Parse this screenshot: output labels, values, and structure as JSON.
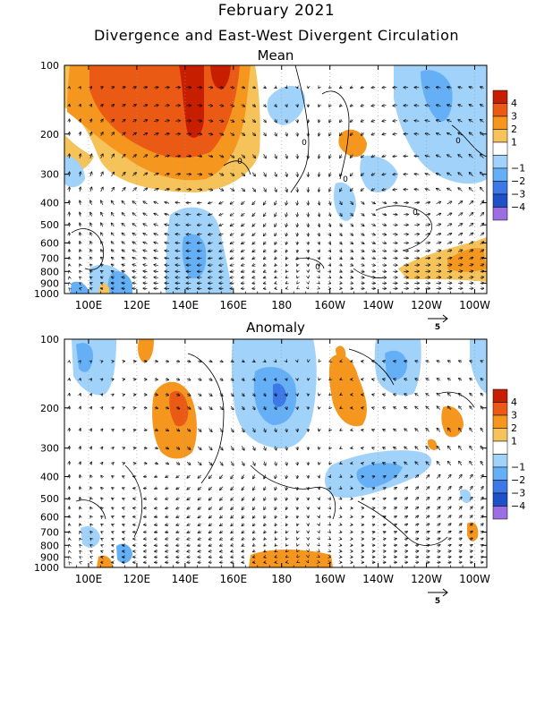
{
  "title": "February 2021",
  "subtitle": "Divergence and East-West Divergent Circulation",
  "colors": {
    "pos4": "#c81e00",
    "pos3": "#eb5a14",
    "pos2": "#f5961e",
    "pos1": "#f5c35a",
    "neg1": "#a0d2fa",
    "neg2": "#64aff5",
    "neg3": "#3c78e6",
    "neg4": "#1e50c8",
    "neg5": "#9b6ee1",
    "zero": "#ffffff"
  },
  "legend_labels": [
    "4",
    "3",
    "2",
    "1",
    "−1",
    "−2",
    "−3",
    "−4"
  ],
  "x_ticks": [
    "100E",
    "120E",
    "140E",
    "160E",
    "180",
    "160W",
    "140W",
    "120W",
    "100W"
  ],
  "y_ticks": [
    "100",
    "200",
    "300",
    "400",
    "500",
    "600",
    "700",
    "800",
    "900",
    "1000"
  ],
  "contour_labels": [
    "0",
    "0",
    "0",
    "0",
    "0",
    "0"
  ],
  "vector_ref_label": "5",
  "chart_data": [
    {
      "type": "heatmap",
      "title": "Mean",
      "x_range": [
        "90E",
        "95W"
      ],
      "y_axis": "pressure (hPa), log scale",
      "ylim": [
        1000,
        100
      ],
      "x_ticks": [
        "100E",
        "120E",
        "140E",
        "160E",
        "180",
        "160W",
        "140W",
        "120W",
        "100W"
      ],
      "y_ticks": [
        100,
        200,
        300,
        400,
        500,
        600,
        700,
        800,
        900,
        1000
      ],
      "shading_levels": [
        -4,
        -3,
        -2,
        -1,
        1,
        2,
        3,
        4
      ],
      "overlay": "divergent circulation vectors (u, omega) with contours",
      "vector_reference": 5,
      "grid": true,
      "legend": "right",
      "features": [
        {
          "lon": "140E",
          "pressure": 150,
          "divergence": 4,
          "note": "strong upper-level divergence 115E-165E"
        },
        {
          "lon": "140E",
          "pressure": 800,
          "divergence": -2,
          "note": "low-level convergence"
        },
        {
          "lon": "100W",
          "pressure": 850,
          "divergence": 2,
          "note": "low-level divergence east Pacific"
        },
        {
          "lon": "170W",
          "pressure": 200,
          "divergence": -1.5,
          "note": "upper convergence central Pacific"
        },
        {
          "lon": "110W",
          "pressure": 150,
          "divergence": -2,
          "note": "upper convergence east Pacific"
        }
      ]
    },
    {
      "type": "heatmap",
      "title": "Anomaly",
      "x_range": [
        "90E",
        "95W"
      ],
      "y_axis": "pressure (hPa), log scale",
      "ylim": [
        1000,
        100
      ],
      "x_ticks": [
        "100E",
        "120E",
        "140E",
        "160E",
        "180",
        "160W",
        "140W",
        "120W",
        "100W"
      ],
      "y_ticks": [
        100,
        200,
        300,
        400,
        500,
        600,
        700,
        800,
        900,
        1000
      ],
      "shading_levels": [
        -4,
        -3,
        -2,
        -1,
        1,
        2,
        3,
        4
      ],
      "overlay": "divergent circulation vectors (u, omega) with contours",
      "vector_reference": 5,
      "grid": true,
      "legend": "right",
      "features": [
        {
          "lon": "140E",
          "pressure": 250,
          "divergence": 2.5,
          "note": "upper divergence anomaly"
        },
        {
          "lon": "180",
          "pressure": 200,
          "divergence": -2.5,
          "note": "upper convergence anomaly"
        },
        {
          "lon": "155W",
          "pressure": 200,
          "divergence": 2,
          "note": "upper divergence anomaly"
        },
        {
          "lon": "100E",
          "pressure": 130,
          "divergence": -2,
          "note": "upper convergence anomaly"
        },
        {
          "lon": "175E",
          "pressure": 1000,
          "divergence": 1.5,
          "note": "near-surface divergence anomaly"
        }
      ]
    }
  ]
}
